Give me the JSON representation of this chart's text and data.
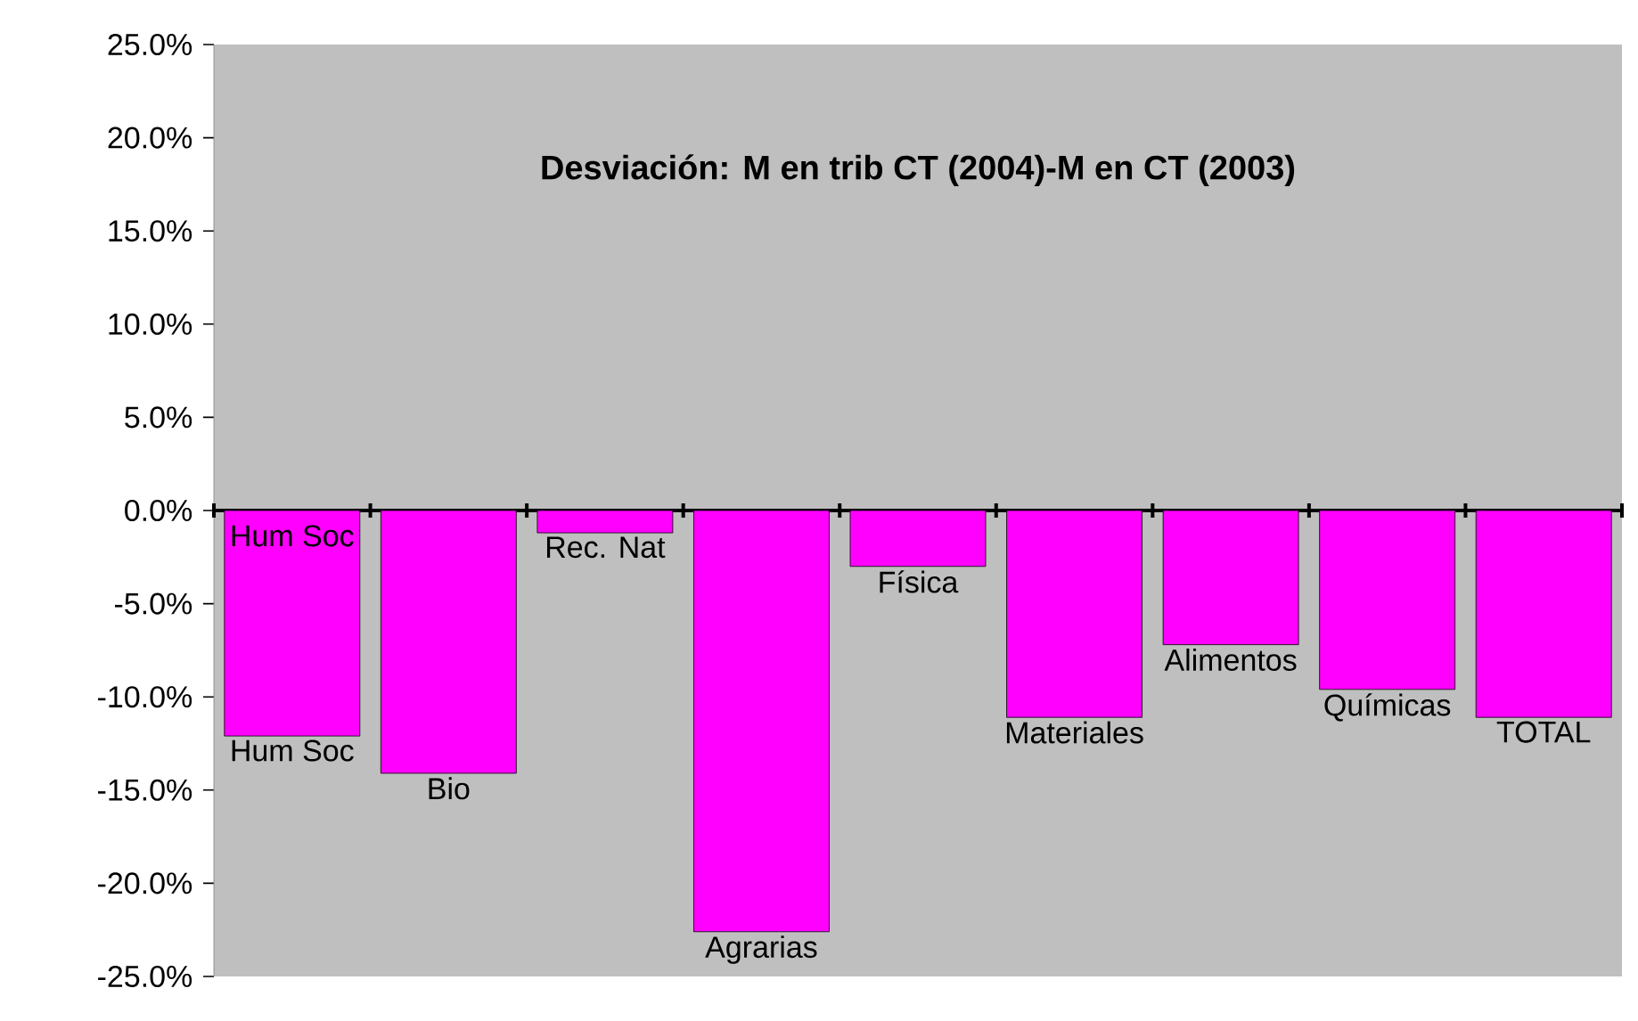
{
  "chart_data": {
    "type": "bar",
    "title": "Desviación: M en trib CT (2004)-M en CT (2003)",
    "categories": [
      "Hum Soc",
      "Bio",
      "Rec. Nat",
      "Agrarias",
      "Física",
      "Materiales",
      "Alimentos",
      "Químicas",
      "TOTAL"
    ],
    "values": [
      -12.1,
      -14.1,
      -1.2,
      -22.6,
      -3.0,
      -11.1,
      -7.2,
      -9.6,
      -11.1
    ],
    "color": "#ff00ff",
    "ylim": [
      -25,
      25
    ],
    "yticks": [
      {
        "value": -25,
        "label": "-25.0%"
      },
      {
        "value": -20,
        "label": "-20.0%"
      },
      {
        "value": -15,
        "label": "-15.0%"
      },
      {
        "value": -10,
        "label": "-10.0%"
      },
      {
        "value": -5,
        "label": "-5.0%"
      },
      {
        "value": 0,
        "label": "0.0%"
      },
      {
        "value": 5,
        "label": "5.0%"
      },
      {
        "value": 10,
        "label": "10.0%"
      },
      {
        "value": 15,
        "label": "15.0%"
      },
      {
        "value": 20,
        "label": "20.0%"
      },
      {
        "value": 25,
        "label": "25.0%"
      }
    ],
    "annotations": [
      "Hum Soc"
    ]
  }
}
